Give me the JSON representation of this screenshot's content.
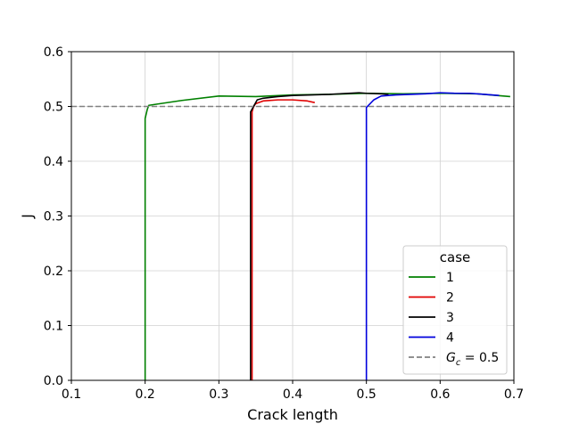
{
  "chart_data": {
    "type": "line",
    "xlabel": "Crack length",
    "ylabel": "J",
    "xlim": [
      0.1,
      0.7
    ],
    "ylim": [
      0.0,
      0.6
    ],
    "xticks": [
      0.1,
      0.2,
      0.3,
      0.4,
      0.5,
      0.6,
      0.7
    ],
    "yticks": [
      0.0,
      0.1,
      0.2,
      0.3,
      0.4,
      0.5,
      0.6
    ],
    "xtick_labels": [
      "0.1",
      "0.2",
      "0.3",
      "0.4",
      "0.5",
      "0.6",
      "0.7"
    ],
    "ytick_labels": [
      "0.0",
      "0.1",
      "0.2",
      "0.3",
      "0.4",
      "0.5",
      "0.6"
    ],
    "grid": true,
    "legend": {
      "title": "case",
      "position": "lower-right"
    },
    "series": [
      {
        "name": "1",
        "color": "#008000",
        "points": [
          [
            0.2,
            0.0
          ],
          [
            0.2,
            0.1
          ],
          [
            0.2,
            0.2
          ],
          [
            0.2,
            0.3
          ],
          [
            0.2,
            0.4
          ],
          [
            0.2,
            0.478
          ],
          [
            0.203,
            0.495
          ],
          [
            0.205,
            0.502
          ],
          [
            0.25,
            0.511
          ],
          [
            0.3,
            0.519
          ],
          [
            0.35,
            0.518
          ],
          [
            0.4,
            0.521
          ],
          [
            0.45,
            0.522
          ],
          [
            0.5,
            0.524
          ],
          [
            0.55,
            0.523
          ],
          [
            0.6,
            0.524
          ],
          [
            0.65,
            0.523
          ],
          [
            0.695,
            0.518
          ]
        ]
      },
      {
        "name": "2",
        "color": "#e00000",
        "points": [
          [
            0.345,
            0.0
          ],
          [
            0.345,
            0.2
          ],
          [
            0.345,
            0.4
          ],
          [
            0.345,
            0.49
          ],
          [
            0.347,
            0.5
          ],
          [
            0.35,
            0.505
          ],
          [
            0.36,
            0.51
          ],
          [
            0.38,
            0.512
          ],
          [
            0.4,
            0.512
          ],
          [
            0.42,
            0.51
          ],
          [
            0.43,
            0.507
          ]
        ]
      },
      {
        "name": "3",
        "color": "#000000",
        "points": [
          [
            0.343,
            0.0
          ],
          [
            0.343,
            0.2
          ],
          [
            0.343,
            0.4
          ],
          [
            0.343,
            0.49
          ],
          [
            0.347,
            0.5
          ],
          [
            0.352,
            0.512
          ],
          [
            0.36,
            0.515
          ],
          [
            0.38,
            0.518
          ],
          [
            0.4,
            0.52
          ],
          [
            0.45,
            0.522
          ],
          [
            0.49,
            0.525
          ],
          [
            0.5,
            0.524
          ],
          [
            0.52,
            0.523
          ],
          [
            0.53,
            0.522
          ]
        ]
      },
      {
        "name": "4",
        "color": "#0000dd",
        "points": [
          [
            0.5,
            0.0
          ],
          [
            0.5,
            0.2
          ],
          [
            0.5,
            0.4
          ],
          [
            0.5,
            0.498
          ],
          [
            0.51,
            0.512
          ],
          [
            0.52,
            0.519
          ],
          [
            0.54,
            0.521
          ],
          [
            0.56,
            0.522
          ],
          [
            0.58,
            0.523
          ],
          [
            0.6,
            0.525
          ],
          [
            0.62,
            0.524
          ],
          [
            0.64,
            0.524
          ],
          [
            0.66,
            0.522
          ],
          [
            0.68,
            0.52
          ]
        ]
      }
    ],
    "reference_line": {
      "name": "G_c = 0.5",
      "label_main": "G",
      "label_sub": "c",
      "label_rest": " = 0.5",
      "y": 0.5,
      "color": "#808080",
      "style": "dashed"
    }
  }
}
